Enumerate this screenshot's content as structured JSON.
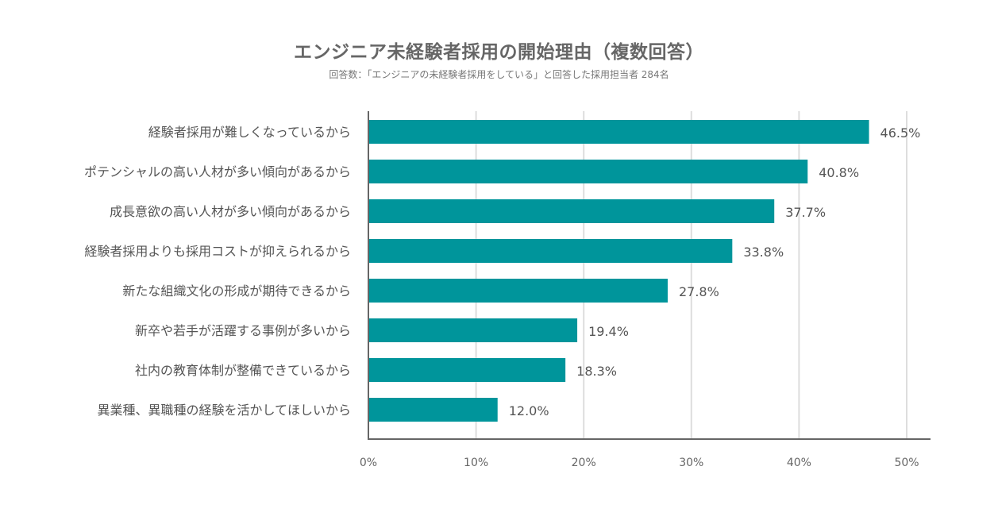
{
  "chart_data": {
    "type": "bar",
    "orientation": "horizontal",
    "title": "エンジニア未経験者採用の開始理由（複数回答）",
    "subtitle": "回答数：「エンジニアの未経験者採用をしている」と回答した採用担当者 284名",
    "categories": [
      "経験者採用が難しくなっているから",
      "ポテンシャルの高い人材が多い傾向があるから",
      "成長意欲の高い人材が多い傾向があるから",
      "経験者採用よりも採用コストが抑えられるから",
      "新たな組織文化の形成が期待できるから",
      "新卒や若手が活躍する事例が多いから",
      "社内の教育体制が整備できているから",
      "異業種、異職種の経験を活かしてほしいから"
    ],
    "values": [
      46.5,
      40.8,
      37.7,
      33.8,
      27.8,
      19.4,
      18.3,
      12.0
    ],
    "value_labels": [
      "46.5%",
      "40.8%",
      "37.7%",
      "33.8%",
      "27.8%",
      "19.4%",
      "18.3%",
      "12.0%"
    ],
    "xlim": [
      0,
      50
    ],
    "xticks": [
      0,
      10,
      20,
      30,
      40,
      50
    ],
    "xtick_labels": [
      "0%",
      "10%",
      "20%",
      "30%",
      "40%",
      "50%"
    ],
    "grid": true,
    "bar_color": "#00959b",
    "grid_color": "#dddddd",
    "axis_color": "#666666"
  }
}
